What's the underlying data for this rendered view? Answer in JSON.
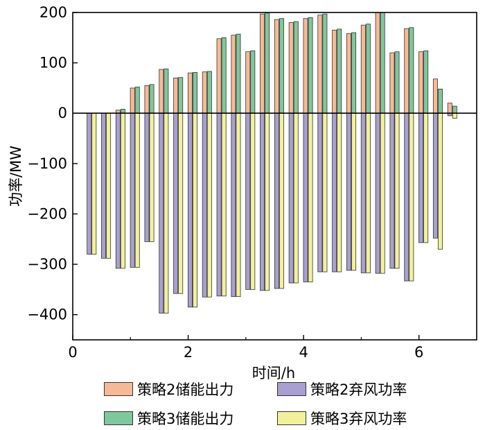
{
  "chart_data": {
    "type": "bar",
    "title": "",
    "xlabel": "时间/h",
    "ylabel": "功率/MW",
    "xlim": [
      0,
      7
    ],
    "ylim": [
      -450,
      200
    ],
    "xticks": [
      0,
      2,
      4,
      6
    ],
    "yticks": [
      200,
      100,
      0,
      -100,
      -200,
      -300,
      -400
    ],
    "grid": false,
    "legend_position": "bottom",
    "x": [
      0.333,
      0.583,
      0.833,
      1.083,
      1.333,
      1.583,
      1.833,
      2.083,
      2.333,
      2.583,
      2.833,
      3.083,
      3.333,
      3.583,
      3.833,
      4.083,
      4.333,
      4.583,
      4.833,
      5.083,
      5.333,
      5.583,
      5.833,
      6.083,
      6.333,
      6.583
    ],
    "series": [
      {
        "name": "策略2储能出力",
        "color": "#f6b997",
        "values": [
          0,
          0,
          6,
          50,
          55,
          87,
          70,
          80,
          82,
          148,
          155,
          122,
          197,
          186,
          180,
          188,
          195,
          165,
          158,
          175,
          200,
          120,
          168,
          122,
          68,
          20
        ]
      },
      {
        "name": "策略3储能出力",
        "color": "#7fc79c",
        "values": [
          0,
          0,
          8,
          52,
          57,
          88,
          71,
          81,
          83,
          150,
          157,
          124,
          199,
          188,
          182,
          190,
          197,
          167,
          160,
          177,
          200,
          122,
          170,
          124,
          48,
          14
        ]
      },
      {
        "name": "策略2弃风功率",
        "color": "#a99fd0",
        "values": [
          -280,
          -288,
          -308,
          -306,
          -255,
          -397,
          -358,
          -385,
          -365,
          -363,
          -364,
          -350,
          -352,
          -348,
          -337,
          -335,
          -315,
          -315,
          -312,
          -317,
          -318,
          -308,
          -333,
          -257,
          -248,
          -5
        ]
      },
      {
        "name": "策略3弃风功率",
        "color": "#f2f09a",
        "values": [
          -280,
          -288,
          -308,
          -306,
          -255,
          -397,
          -358,
          -385,
          -365,
          -363,
          -364,
          -350,
          -352,
          -348,
          -337,
          -335,
          -315,
          -315,
          -312,
          -317,
          -318,
          -308,
          -333,
          -257,
          -270,
          -10
        ]
      }
    ],
    "legend_order": [
      0,
      2,
      1,
      3
    ]
  }
}
